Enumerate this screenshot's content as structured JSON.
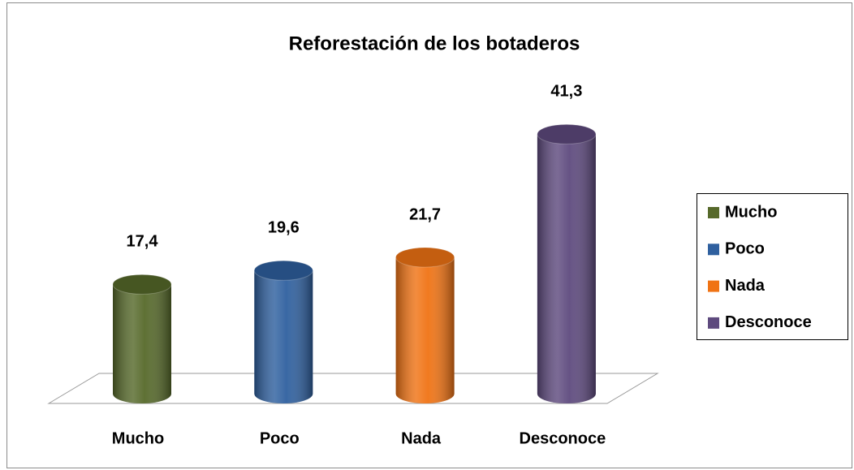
{
  "chart_data": {
    "type": "bar",
    "title": "Reforestación de los botaderos",
    "categories": [
      "Mucho",
      "Poco",
      "Nada",
      "Desconoce"
    ],
    "values": [
      17.4,
      19.6,
      21.7,
      41.3
    ],
    "value_labels": [
      "17,4",
      "19,6",
      "21,7",
      "41,3"
    ],
    "colors": [
      "#56692a",
      "#2f609f",
      "#f07314",
      "#5e4a7e"
    ],
    "ylim": [
      0,
      50
    ],
    "legend": "right"
  }
}
